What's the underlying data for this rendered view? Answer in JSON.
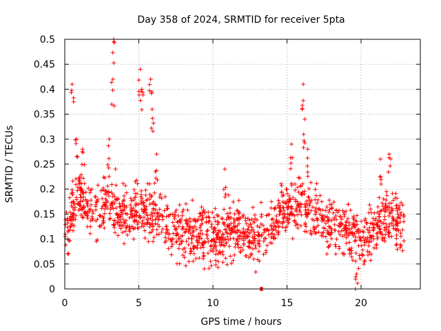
{
  "chart_data": {
    "type": "scatter",
    "title": "Day 358 of 2024, SRMTID for receiver 5pta",
    "xlabel": "GPS time / hours",
    "ylabel": "SRMTID / TECUs",
    "xlim": [
      0,
      24
    ],
    "ylim": [
      0,
      0.5
    ],
    "xticks": [
      0,
      5,
      10,
      15,
      20
    ],
    "yticks": [
      0,
      0.05,
      0.1,
      0.15,
      0.2,
      0.25,
      0.3,
      0.35,
      0.4,
      0.45,
      0.5
    ],
    "xtick_labels": [
      "0",
      "5",
      "10",
      "15",
      "20"
    ],
    "ytick_labels": [
      "0",
      "0.05",
      "0.1",
      "0.15",
      "0.2",
      "0.25",
      "0.3",
      "0.35",
      "0.4",
      "0.45",
      "0.5"
    ],
    "grid": true,
    "marker": "+",
    "series_color": "#ff0000",
    "series": [
      {
        "name": "SRMTID",
        "note": "dense scatter; points approximated from the plotted envelope (baseline trend + spikes)",
        "x_range": [
          0,
          22.9
        ],
        "baseline": [
          [
            0.0,
            0.1
          ],
          [
            0.5,
            0.16
          ],
          [
            1.0,
            0.19
          ],
          [
            2.0,
            0.15
          ],
          [
            3.0,
            0.18
          ],
          [
            4.0,
            0.14
          ],
          [
            5.0,
            0.16
          ],
          [
            6.0,
            0.15
          ],
          [
            7.0,
            0.12
          ],
          [
            8.0,
            0.11
          ],
          [
            9.0,
            0.12
          ],
          [
            10.0,
            0.1
          ],
          [
            11.0,
            0.11
          ],
          [
            12.0,
            0.12
          ],
          [
            13.0,
            0.1
          ],
          [
            14.0,
            0.13
          ],
          [
            15.0,
            0.16
          ],
          [
            16.0,
            0.17
          ],
          [
            17.0,
            0.14
          ],
          [
            18.0,
            0.13
          ],
          [
            19.0,
            0.12
          ],
          [
            20.0,
            0.1
          ],
          [
            21.0,
            0.13
          ],
          [
            22.0,
            0.15
          ],
          [
            22.9,
            0.12
          ]
        ],
        "spikes": [
          [
            0.5,
            0.41
          ],
          [
            0.8,
            0.3
          ],
          [
            1.2,
            0.28
          ],
          [
            3.0,
            0.3
          ],
          [
            3.3,
            0.5
          ],
          [
            3.25,
            0.42
          ],
          [
            5.1,
            0.44
          ],
          [
            5.2,
            0.4
          ],
          [
            5.8,
            0.42
          ],
          [
            5.9,
            0.36
          ],
          [
            6.2,
            0.27
          ],
          [
            10.8,
            0.24
          ],
          [
            13.3,
            0.0
          ],
          [
            15.3,
            0.29
          ],
          [
            16.1,
            0.41
          ],
          [
            16.2,
            0.34
          ],
          [
            16.4,
            0.28
          ],
          [
            21.3,
            0.26
          ],
          [
            21.9,
            0.27
          ],
          [
            19.7,
            0.03
          ]
        ]
      }
    ]
  }
}
